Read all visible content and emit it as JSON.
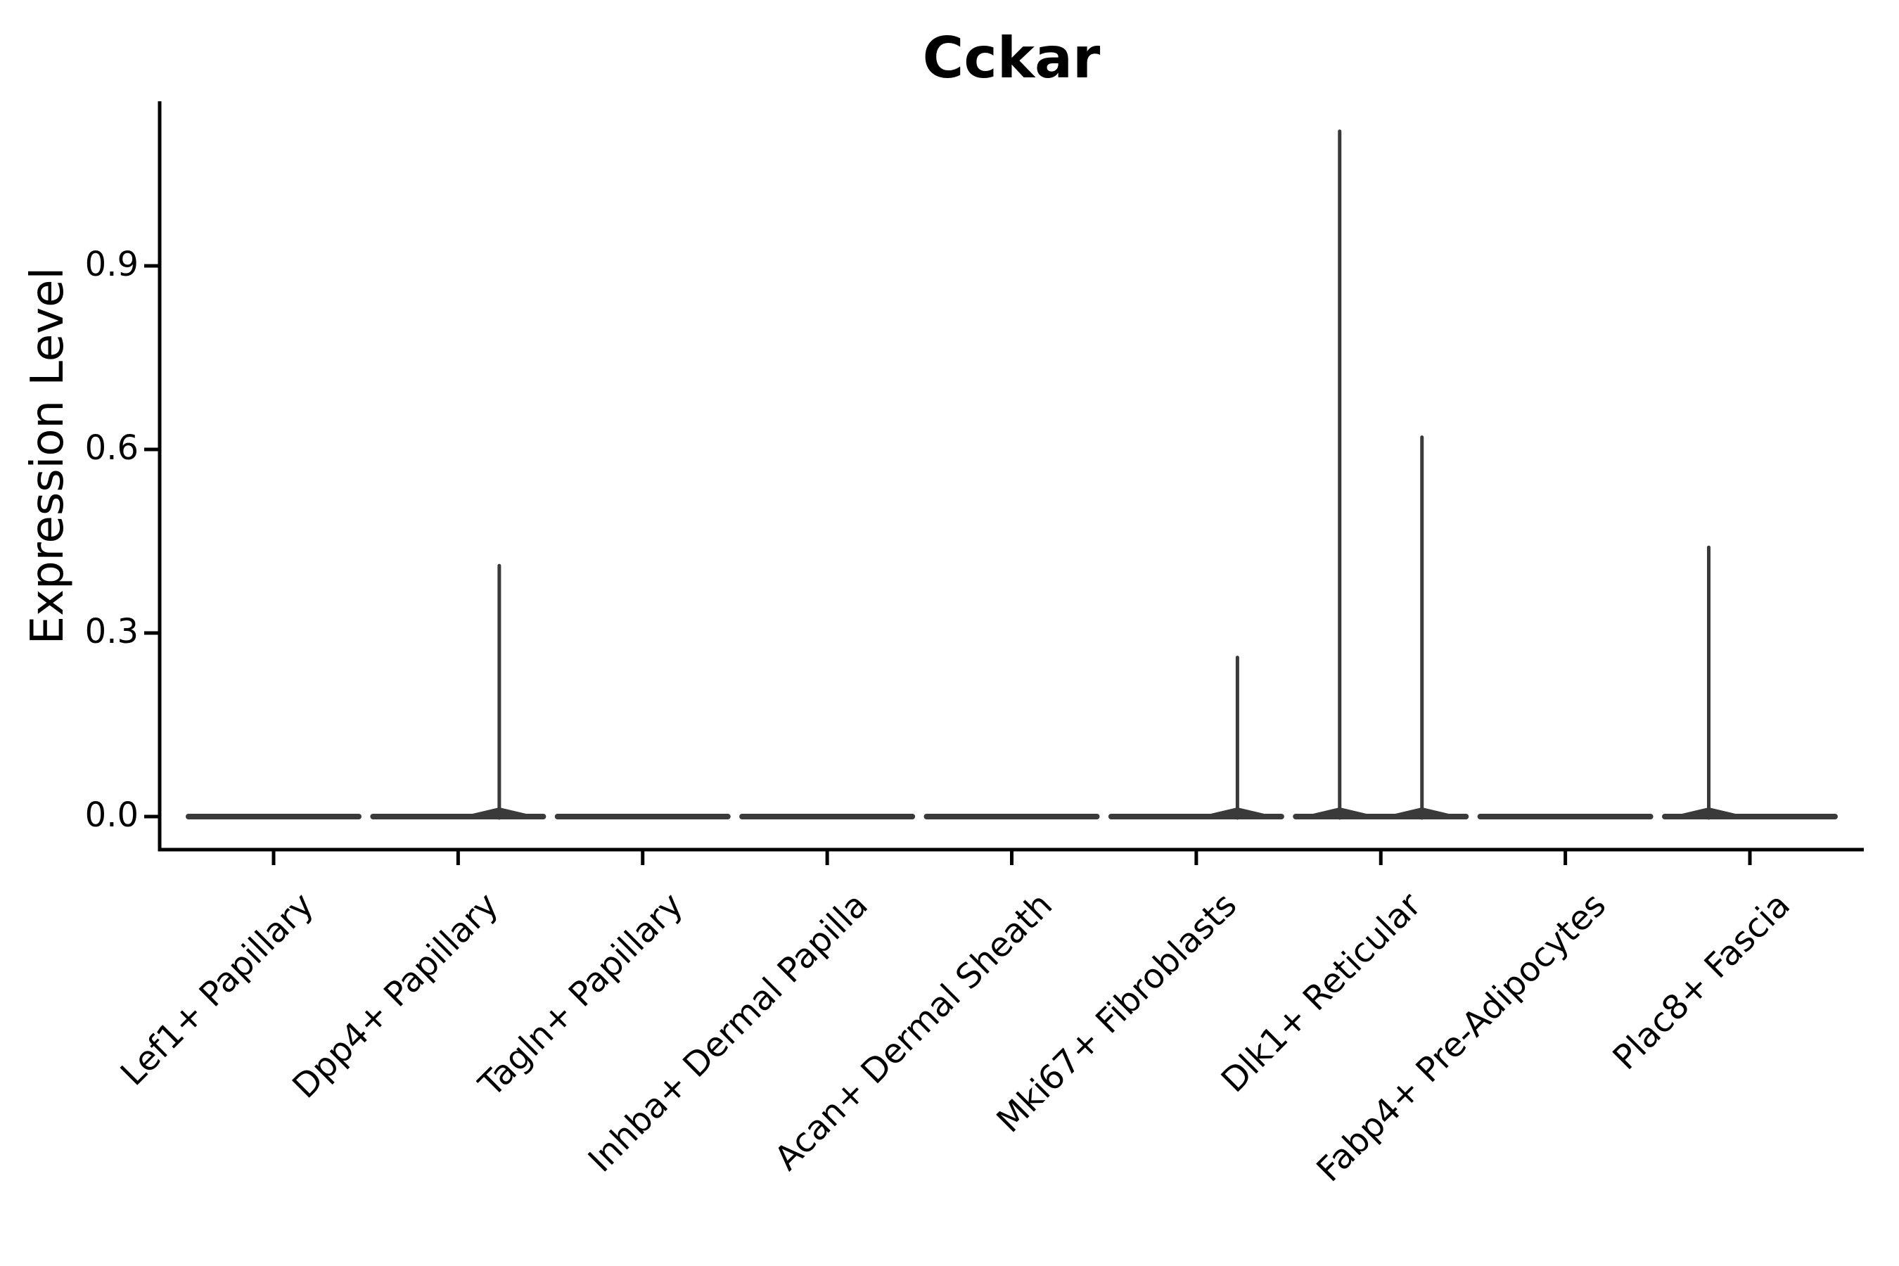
{
  "chart_data": {
    "type": "violin",
    "title": "Cckar",
    "xlabel": "",
    "ylabel": "Expression Level",
    "y_tick_labels": [
      "0.0",
      "0.3",
      "0.6",
      "0.9"
    ],
    "y_tick_values": [
      0.0,
      0.3,
      0.6,
      0.9
    ],
    "ylim": [
      -0.06,
      1.17
    ],
    "grid": false,
    "legend": "none",
    "x_tick_rotation_deg": 45,
    "categories": [
      "Lef1+ Papillary",
      "Dpp4+ Papillary",
      "Tagln+ Papillary",
      "Inhba+ Dermal Papilla",
      "Acan+ Dermal Sheath",
      "Mki67+ Fibroblasts",
      "Dlk1+ Reticular",
      "Fabp4+ Pre-Adipocytes",
      "Plac8+ Fascia"
    ],
    "violins_per_category": 2,
    "baseline_value": 0.0,
    "series": [
      {
        "name": "left-half-violin",
        "max_values": [
          0,
          0,
          0,
          0,
          0,
          0,
          1.12,
          0,
          0.44
        ]
      },
      {
        "name": "right-half-violin",
        "max_values": [
          0,
          0.41,
          0,
          0,
          0,
          0.26,
          0.62,
          0,
          0
        ]
      }
    ],
    "spikes": [
      {
        "category": "Dpp4+ Papillary",
        "side": "right",
        "value": 0.41
      },
      {
        "category": "Mki67+ Fibroblasts",
        "side": "right",
        "value": 0.26
      },
      {
        "category": "Dlk1+ Reticular",
        "side": "left",
        "value": 1.12
      },
      {
        "category": "Dlk1+ Reticular",
        "side": "right",
        "value": 0.62
      },
      {
        "category": "Plac8+ Fascia",
        "side": "left",
        "value": 0.44
      }
    ],
    "colors": {
      "violin_outline": "#3a3a3a",
      "axis": "#000000",
      "text": "#000000",
      "background": "#ffffff"
    }
  }
}
